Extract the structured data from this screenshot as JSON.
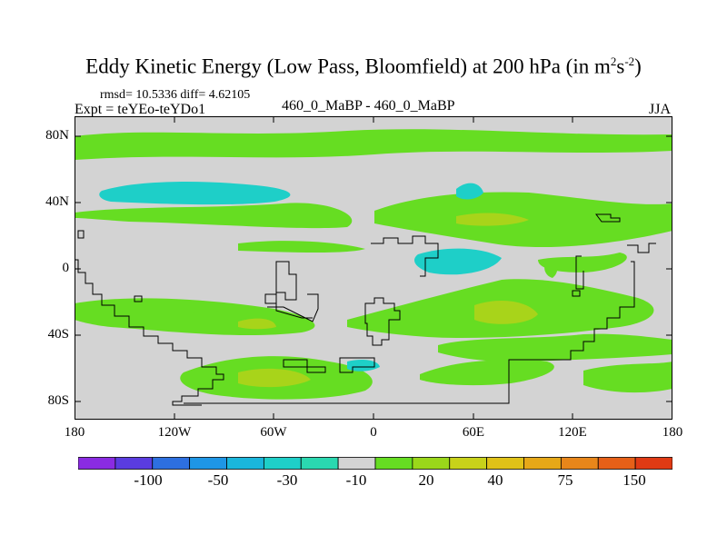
{
  "title": {
    "main": "Eddy Kinetic Energy (Low Pass, Bloomfield) at 200 hPa (in m",
    "sup1": "2",
    "mid": "s",
    "sup2": "-2",
    "end": ")"
  },
  "stats": "rmsd= 10.5336 diff= 4.62105",
  "expt": "Expt = teYEo-teYDo1",
  "case": "460_0_MaBP - 460_0_MaBP",
  "season": "JJA",
  "axes": {
    "y_labels": [
      "80N",
      "40N",
      "0",
      "40S",
      "80S"
    ],
    "x_labels": [
      "180",
      "120W",
      "60W",
      "0",
      "60E",
      "120E",
      "180"
    ]
  },
  "colorbar": {
    "labels": [
      "-100",
      "-50",
      "-30",
      "-10",
      "20",
      "40",
      "75",
      "150"
    ],
    "colors": [
      "#8a2be2",
      "#5a3ce0",
      "#2d6fe0",
      "#1e96e6",
      "#1ab6dc",
      "#1ecfc8",
      "#2ad8b0",
      "#d3d3d3",
      "#66dd22",
      "#9ad71a",
      "#c8d21a",
      "#e0c218",
      "#e6a818",
      "#e8861a",
      "#e66018",
      "#e03a14"
    ]
  },
  "map_colors": {
    "background": "#d3d3d3",
    "green": "#66dd22",
    "yellowgreen": "#a8d41a",
    "cyan": "#1ecfc8",
    "outline": "#000000"
  }
}
